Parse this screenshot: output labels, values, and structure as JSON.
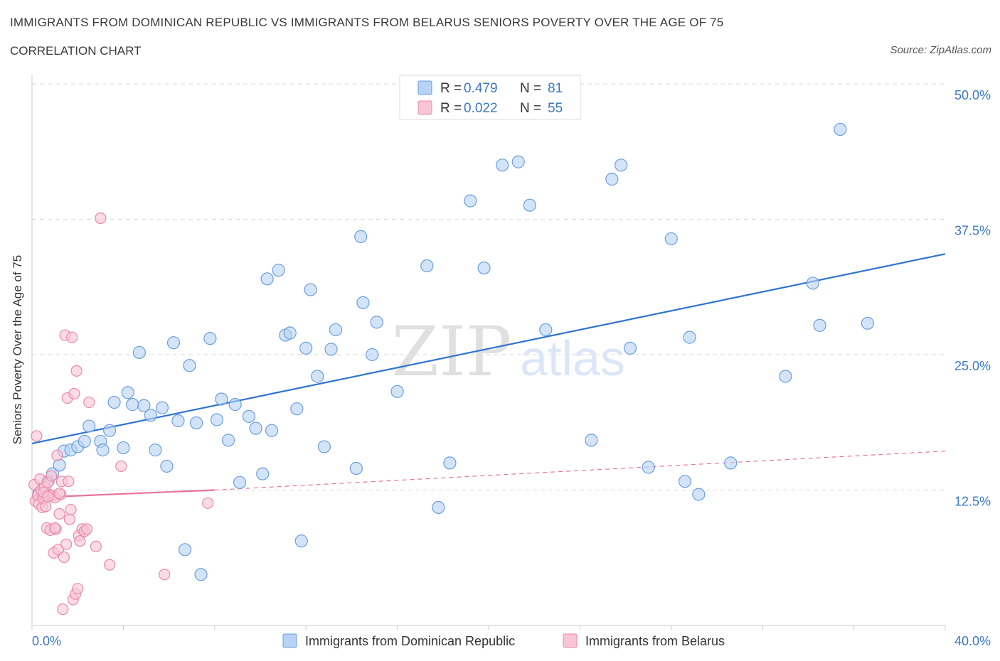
{
  "title": "IMMIGRANTS FROM DOMINICAN REPUBLIC VS IMMIGRANTS FROM BELARUS SENIORS POVERTY OVER THE AGE OF 75",
  "subtitle": "CORRELATION CHART",
  "source": "Source: ZipAtlas.com",
  "watermark": {
    "zip": "ZIP",
    "atlas": "atlas"
  },
  "colors": {
    "blue_fill": "#b8d2f4",
    "blue_stroke": "#6a9fdc",
    "blue_line": "#2f74cf",
    "pink_fill": "#f8c5d6",
    "pink_stroke": "#e98aa9",
    "pink_line": "#e8729a",
    "value_text": "#3b78c8",
    "grid": "#d8d8d8"
  },
  "chart_data": {
    "type": "scatter",
    "title": "IMMIGRANTS FROM DOMINICAN REPUBLIC VS IMMIGRANTS FROM BELARUS SENIORS POVERTY OVER THE AGE OF 75",
    "xlabel": "",
    "ylabel": "Seniors Poverty Over the Age of 75",
    "xlim": [
      0,
      40
    ],
    "ylim": [
      0,
      50
    ],
    "x_tick_labels": [
      "0.0%",
      "40.0%"
    ],
    "y_ticks": [
      12.5,
      25.0,
      37.5,
      50.0
    ],
    "y_tick_labels": [
      "12.5%",
      "25.0%",
      "37.5%",
      "50.0%"
    ],
    "grid": true,
    "legend_position": "top-center",
    "series": [
      {
        "name": "Immigrants from Dominican Republic",
        "color": "blue",
        "R": "0.479",
        "N": "81",
        "trendline": {
          "x": [
            0,
            40
          ],
          "y": [
            16.8,
            34.3
          ],
          "style": "solid"
        },
        "points": [
          [
            0.3,
            12.2
          ],
          [
            0.5,
            11.8
          ],
          [
            0.7,
            13.3
          ],
          [
            0.9,
            14.0
          ],
          [
            1.2,
            14.8
          ],
          [
            1.4,
            16.1
          ],
          [
            1.7,
            16.2
          ],
          [
            2.0,
            16.5
          ],
          [
            2.3,
            17.0
          ],
          [
            2.5,
            18.4
          ],
          [
            3.0,
            17.0
          ],
          [
            3.1,
            16.2
          ],
          [
            3.4,
            18.0
          ],
          [
            3.6,
            20.6
          ],
          [
            4.0,
            16.4
          ],
          [
            4.2,
            21.5
          ],
          [
            4.4,
            20.4
          ],
          [
            4.7,
            25.2
          ],
          [
            4.9,
            20.3
          ],
          [
            5.2,
            19.4
          ],
          [
            5.4,
            16.2
          ],
          [
            5.7,
            20.1
          ],
          [
            5.9,
            14.7
          ],
          [
            6.2,
            26.1
          ],
          [
            6.4,
            18.9
          ],
          [
            6.7,
            7.0
          ],
          [
            6.9,
            24.0
          ],
          [
            7.2,
            18.7
          ],
          [
            7.4,
            4.7
          ],
          [
            7.8,
            26.5
          ],
          [
            8.1,
            19.0
          ],
          [
            8.3,
            20.9
          ],
          [
            8.6,
            17.1
          ],
          [
            8.9,
            20.4
          ],
          [
            9.1,
            13.2
          ],
          [
            9.5,
            19.3
          ],
          [
            9.8,
            18.2
          ],
          [
            10.1,
            14.0
          ],
          [
            10.3,
            32.0
          ],
          [
            10.5,
            18.0
          ],
          [
            10.8,
            32.8
          ],
          [
            11.1,
            26.8
          ],
          [
            11.3,
            27.0
          ],
          [
            11.6,
            20.0
          ],
          [
            11.8,
            7.8
          ],
          [
            12.0,
            25.6
          ],
          [
            12.2,
            31.0
          ],
          [
            12.5,
            23.0
          ],
          [
            12.8,
            16.5
          ],
          [
            13.1,
            25.5
          ],
          [
            13.3,
            27.3
          ],
          [
            14.2,
            14.5
          ],
          [
            14.4,
            35.9
          ],
          [
            14.5,
            29.8
          ],
          [
            14.9,
            25.0
          ],
          [
            15.1,
            28.0
          ],
          [
            16.0,
            21.6
          ],
          [
            17.3,
            33.2
          ],
          [
            17.8,
            10.9
          ],
          [
            18.3,
            15.0
          ],
          [
            19.2,
            39.2
          ],
          [
            19.8,
            33.0
          ],
          [
            20.6,
            42.5
          ],
          [
            21.3,
            42.8
          ],
          [
            21.8,
            38.8
          ],
          [
            22.5,
            27.3
          ],
          [
            24.5,
            17.1
          ],
          [
            25.4,
            41.2
          ],
          [
            25.8,
            42.5
          ],
          [
            26.2,
            25.6
          ],
          [
            27.0,
            14.6
          ],
          [
            28.0,
            35.7
          ],
          [
            28.6,
            13.3
          ],
          [
            28.8,
            26.6
          ],
          [
            29.2,
            12.1
          ],
          [
            30.6,
            15.0
          ],
          [
            33.0,
            23.0
          ],
          [
            34.2,
            31.6
          ],
          [
            34.5,
            27.7
          ],
          [
            35.4,
            45.8
          ],
          [
            36.6,
            27.9
          ]
        ]
      },
      {
        "name": "Immigrants from Belarus",
        "color": "pink",
        "R": "0.022",
        "N": "55",
        "trendline": {
          "x": [
            0,
            8.0
          ],
          "y": [
            11.8,
            12.5
          ],
          "style": "solid",
          "extended": {
            "x": [
              8.0,
              40
            ],
            "y": [
              12.5,
              16.1
            ],
            "style": "dashed"
          }
        },
        "points": [
          [
            0.1,
            13.0
          ],
          [
            0.15,
            11.5
          ],
          [
            0.2,
            17.5
          ],
          [
            0.25,
            12.0
          ],
          [
            0.3,
            11.2
          ],
          [
            0.35,
            13.5
          ],
          [
            0.4,
            12.5
          ],
          [
            0.45,
            10.9
          ],
          [
            0.5,
            11.7
          ],
          [
            0.55,
            12.8
          ],
          [
            0.6,
            11.0
          ],
          [
            0.65,
            9.0
          ],
          [
            0.7,
            13.2
          ],
          [
            0.75,
            12.1
          ],
          [
            0.8,
            8.8
          ],
          [
            0.85,
            13.8
          ],
          [
            0.9,
            12.0
          ],
          [
            0.95,
            6.7
          ],
          [
            1.0,
            11.8
          ],
          [
            1.05,
            8.9
          ],
          [
            1.1,
            15.7
          ],
          [
            1.15,
            7.0
          ],
          [
            1.2,
            10.3
          ],
          [
            1.25,
            12.1
          ],
          [
            1.3,
            13.3
          ],
          [
            1.35,
            1.5
          ],
          [
            1.4,
            6.3
          ],
          [
            1.45,
            26.8
          ],
          [
            1.5,
            7.5
          ],
          [
            1.55,
            21.0
          ],
          [
            1.6,
            13.3
          ],
          [
            1.65,
            9.8
          ],
          [
            1.7,
            10.7
          ],
          [
            1.75,
            26.6
          ],
          [
            1.8,
            2.4
          ],
          [
            1.85,
            21.4
          ],
          [
            1.9,
            2.9
          ],
          [
            1.95,
            23.5
          ],
          [
            2.0,
            3.4
          ],
          [
            2.05,
            8.3
          ],
          [
            2.1,
            7.8
          ],
          [
            2.2,
            8.9
          ],
          [
            2.3,
            8.7
          ],
          [
            2.4,
            8.9
          ],
          [
            2.5,
            20.6
          ],
          [
            2.8,
            7.3
          ],
          [
            3.0,
            37.6
          ],
          [
            3.4,
            5.6
          ],
          [
            3.9,
            14.7
          ],
          [
            5.8,
            4.7
          ],
          [
            7.7,
            11.3
          ],
          [
            0.5,
            12.3
          ],
          [
            1.0,
            9.0
          ],
          [
            0.7,
            11.9
          ],
          [
            1.2,
            12.2
          ]
        ]
      }
    ]
  }
}
